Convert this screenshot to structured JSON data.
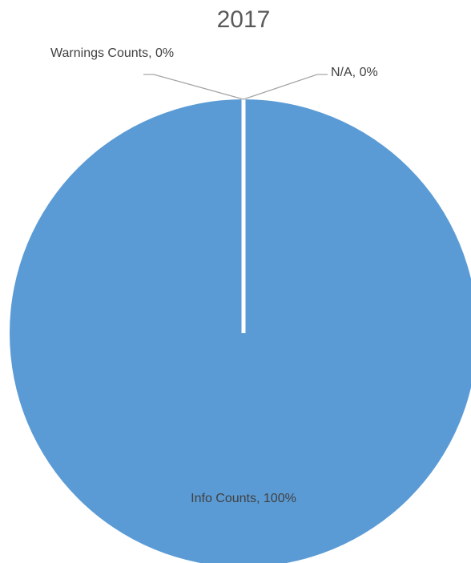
{
  "chart_data": {
    "type": "pie",
    "title": "2017",
    "categories": [
      "Info Counts",
      "Warnings Counts",
      "N/A"
    ],
    "values": [
      100,
      0,
      0
    ],
    "labels": [
      "Info Counts, 100%",
      "Warnings Counts, 0%",
      "N/A, 0%"
    ],
    "colors": [
      "#5B9BD5",
      "#ED7D31",
      "#A5A5A5"
    ],
    "legend": "none"
  }
}
